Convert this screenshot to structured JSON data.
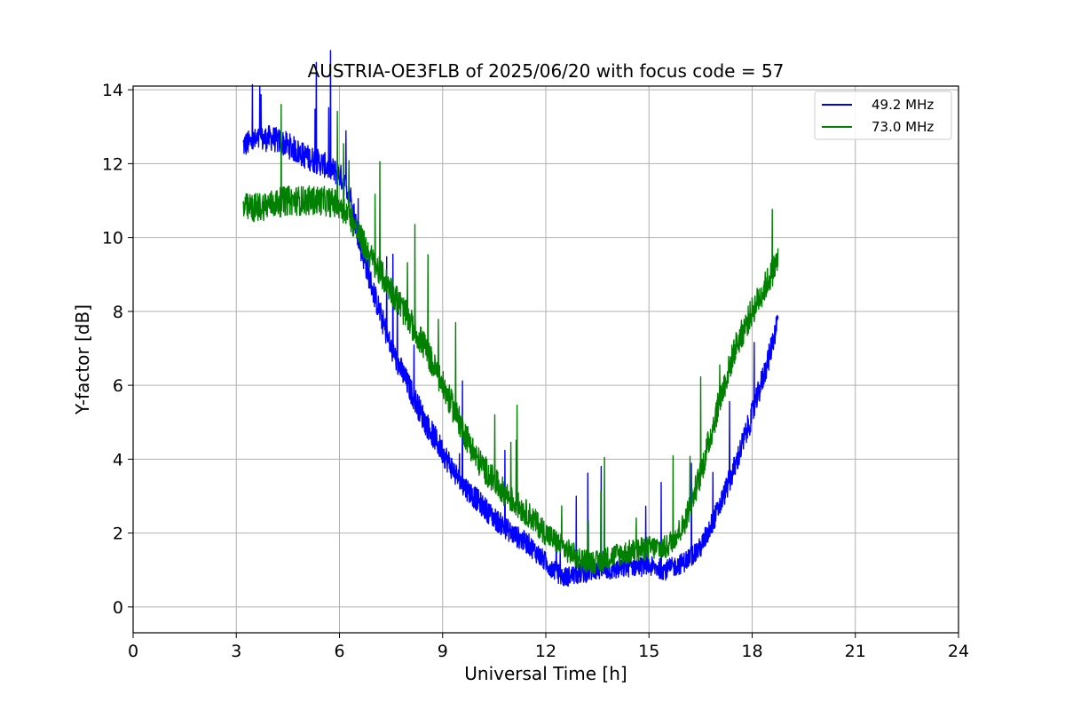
{
  "chart_data": {
    "type": "line",
    "title": "AUSTRIA-OE3FLB of 2025/06/20 with focus code = 57",
    "xlabel": "Universal Time [h]",
    "ylabel": "Y-factor [dB]",
    "xlim": [
      0,
      24
    ],
    "ylim": [
      -0.7,
      14.1
    ],
    "xticks": [
      0,
      3,
      6,
      9,
      12,
      15,
      18,
      21,
      24
    ],
    "yticks": [
      0,
      2,
      4,
      6,
      8,
      10,
      12,
      14
    ],
    "grid": true,
    "legend_position": "top-right",
    "series": [
      {
        "name": "49.2 MHz",
        "color": "#0000ff",
        "noise": 0.35,
        "x": [
          3.2,
          3.5,
          4.0,
          4.5,
          5.0,
          5.5,
          6.0,
          6.3,
          6.6,
          7.0,
          7.5,
          8.0,
          8.5,
          9.0,
          9.5,
          10.0,
          10.5,
          11.0,
          11.5,
          12.0,
          12.5,
          13.0,
          13.5,
          14.0,
          14.5,
          15.0,
          15.5,
          16.0,
          16.5,
          17.0,
          17.5,
          18.0,
          18.5,
          18.75
        ],
        "y": [
          12.5,
          12.6,
          12.7,
          12.5,
          12.2,
          12.0,
          11.7,
          11.2,
          9.8,
          8.5,
          7.0,
          6.0,
          5.0,
          4.2,
          3.4,
          2.9,
          2.4,
          2.0,
          1.7,
          1.2,
          0.8,
          0.9,
          1.0,
          1.0,
          1.1,
          1.1,
          1.0,
          1.2,
          1.6,
          2.6,
          3.8,
          5.2,
          6.8,
          7.8
        ]
      },
      {
        "name": "73.0 MHz",
        "color": "#008000",
        "noise": 0.4,
        "x": [
          3.2,
          3.5,
          4.0,
          4.5,
          5.0,
          5.5,
          6.0,
          6.3,
          6.6,
          7.0,
          7.5,
          8.0,
          8.5,
          9.0,
          9.5,
          10.0,
          10.5,
          11.0,
          11.5,
          12.0,
          12.5,
          13.0,
          13.5,
          14.0,
          14.5,
          15.0,
          15.5,
          16.0,
          16.5,
          17.0,
          17.5,
          18.0,
          18.5,
          18.75
        ],
        "y": [
          10.8,
          10.8,
          10.9,
          11.0,
          11.0,
          11.0,
          10.9,
          10.6,
          10.0,
          9.3,
          8.6,
          7.8,
          7.0,
          6.0,
          5.0,
          4.0,
          3.4,
          2.9,
          2.5,
          2.0,
          1.6,
          1.3,
          1.2,
          1.4,
          1.5,
          1.6,
          1.6,
          2.2,
          3.6,
          5.4,
          7.0,
          8.0,
          8.9,
          9.4
        ]
      }
    ]
  }
}
